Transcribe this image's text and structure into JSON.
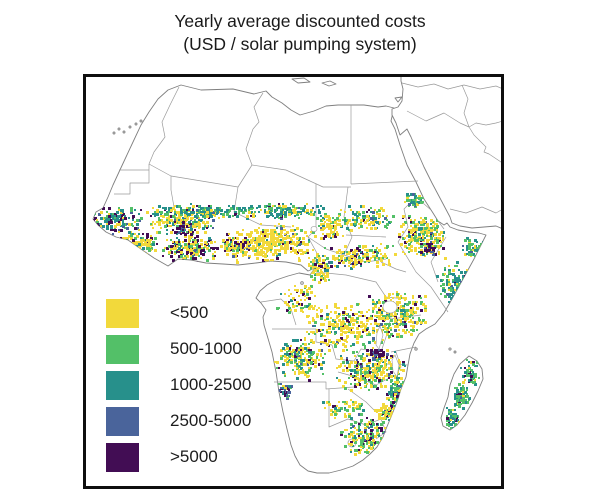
{
  "title": {
    "line1": "Yearly average discounted costs",
    "line2": "(USD / solar pumping system)"
  },
  "legend": {
    "items": [
      {
        "key": "y",
        "label": "<500",
        "color": "#F2D93B"
      },
      {
        "key": "g",
        "label": "500-1000",
        "color": "#53C068"
      },
      {
        "key": "t",
        "label": "1000-2500",
        "color": "#27908B"
      },
      {
        "key": "b",
        "label": "2500-5000",
        "color": "#4A649B"
      },
      {
        "key": "p",
        "label": ">5000",
        "color": "#420D54"
      }
    ]
  },
  "map": {
    "region": "Africa",
    "frame_color": "#0e0e0e",
    "coast_color": "#7f7f7f",
    "border_color": "#9a9a9a",
    "water_color": "#ffffff",
    "land_color": "#ffffff",
    "clusters": [
      [
        30,
        142,
        26,
        13,
        150,
        {
          "y": 1,
          "g": 1.5,
          "t": 3,
          "b": 1,
          "p": 2
        }
      ],
      [
        48,
        165,
        26,
        14,
        170,
        {
          "y": 3.5,
          "g": 1.5,
          "t": 1.5,
          "b": 0.4,
          "p": 1.2
        }
      ],
      [
        92,
        143,
        38,
        14,
        240,
        {
          "y": 5,
          "g": 2,
          "t": 1.5,
          "b": 0.3,
          "p": 0.7
        }
      ],
      [
        115,
        133,
        52,
        7,
        170,
        {
          "y": 1,
          "g": 2.5,
          "t": 4,
          "b": 0.3,
          "p": 0.3
        }
      ],
      [
        104,
        170,
        30,
        14,
        230,
        {
          "y": 4,
          "g": 1.5,
          "t": 0.8,
          "b": 0.3,
          "p": 2.5
        }
      ],
      [
        95,
        150,
        12,
        9,
        50,
        {
          "y": 1,
          "g": 0.3,
          "t": 0.5,
          "b": 0.8,
          "p": 4
        }
      ],
      [
        150,
        168,
        18,
        12,
        120,
        {
          "y": 4,
          "g": 1,
          "t": 0.5,
          "b": 0.3,
          "p": 1.5
        }
      ],
      [
        188,
        165,
        42,
        20,
        360,
        {
          "y": 8,
          "g": 1.2,
          "t": 0.4,
          "b": 0.2,
          "p": 0.4
        }
      ],
      [
        196,
        133,
        48,
        8,
        170,
        {
          "y": 1.5,
          "g": 2.5,
          "t": 4,
          "b": 0.2,
          "p": 0.4
        }
      ],
      [
        243,
        148,
        16,
        14,
        80,
        {
          "y": 4,
          "g": 0.8,
          "t": 0.5,
          "b": 0.2,
          "p": 0.8
        }
      ],
      [
        283,
        140,
        32,
        13,
        130,
        {
          "y": 2.5,
          "g": 2,
          "t": 2,
          "b": 0.4,
          "p": 0.5
        }
      ],
      [
        272,
        178,
        38,
        13,
        170,
        {
          "y": 5,
          "g": 1.5,
          "t": 0.8,
          "b": 0.2,
          "p": 0.8
        }
      ],
      [
        232,
        190,
        13,
        16,
        100,
        {
          "y": 4,
          "g": 2,
          "t": 0.8,
          "b": 0.2,
          "p": 0.8
        }
      ],
      [
        336,
        158,
        26,
        22,
        260,
        {
          "y": 6,
          "g": 2,
          "t": 0.7,
          "b": 0.3,
          "p": 0.8
        }
      ],
      [
        342,
        170,
        10,
        7,
        40,
        {
          "y": 0.5,
          "g": 0.3,
          "t": 0.3,
          "b": 1,
          "p": 4
        }
      ],
      [
        327,
        122,
        13,
        8,
        55,
        {
          "y": 1.5,
          "g": 2.5,
          "t": 2,
          "b": 0.3,
          "p": 0.3
        }
      ],
      [
        368,
        205,
        20,
        22,
        140,
        {
          "y": 0.8,
          "g": 2.5,
          "t": 3.5,
          "b": 0.5,
          "p": 0.3
        }
      ],
      [
        385,
        170,
        12,
        10,
        50,
        {
          "y": 1,
          "g": 2,
          "t": 3,
          "b": 0.2,
          "p": 0.2
        }
      ],
      [
        308,
        238,
        33,
        27,
        300,
        {
          "y": 6,
          "g": 2,
          "t": 0.8,
          "b": 0.3,
          "p": 0.9
        }
      ],
      [
        258,
        248,
        42,
        26,
        280,
        {
          "y": 6,
          "g": 1.5,
          "t": 0.5,
          "b": 0.2,
          "p": 0.8
        }
      ],
      [
        213,
        222,
        26,
        17,
        70,
        {
          "y": 4,
          "g": 1.5,
          "t": 0.3,
          "b": 0.2,
          "p": 0.5
        }
      ],
      [
        285,
        293,
        40,
        22,
        320,
        {
          "y": 5.5,
          "g": 2,
          "t": 1,
          "b": 0.4,
          "p": 1.4
        }
      ],
      [
        290,
        276,
        12,
        7,
        45,
        {
          "y": 0.5,
          "g": 0.3,
          "t": 0.3,
          "b": 1.2,
          "p": 4
        }
      ],
      [
        213,
        280,
        26,
        22,
        200,
        {
          "y": 4,
          "g": 2,
          "t": 1,
          "b": 0.8,
          "p": 1
        }
      ],
      [
        197,
        313,
        10,
        8,
        50,
        {
          "y": 0.3,
          "g": 0.3,
          "t": 0.6,
          "b": 3,
          "p": 2
        }
      ],
      [
        310,
        318,
        12,
        22,
        140,
        {
          "y": 2.5,
          "g": 2.5,
          "t": 1.5,
          "b": 0.4,
          "p": 1
        }
      ],
      [
        258,
        330,
        24,
        11,
        60,
        {
          "y": 3,
          "g": 2,
          "t": 0.8,
          "b": 0.2,
          "p": 0.3
        }
      ],
      [
        300,
        335,
        14,
        9,
        90,
        {
          "y": 5,
          "g": 1.5,
          "t": 0.5,
          "b": 0.2,
          "p": 0.5
        }
      ],
      [
        281,
        358,
        28,
        20,
        210,
        {
          "y": 2.5,
          "g": 3.5,
          "t": 1,
          "b": 0.4,
          "p": 1
        }
      ],
      [
        383,
        295,
        10,
        13,
        80,
        {
          "y": 0.8,
          "g": 3.5,
          "t": 1.5,
          "b": 0.4,
          "p": 1
        }
      ],
      [
        374,
        318,
        9,
        13,
        85,
        {
          "y": 0.8,
          "g": 3.5,
          "t": 1.5,
          "b": 0.4,
          "p": 1.2
        }
      ],
      [
        365,
        340,
        8,
        11,
        70,
        {
          "y": 0.6,
          "g": 3,
          "t": 2,
          "b": 0.4,
          "p": 1.2
        }
      ]
    ]
  }
}
